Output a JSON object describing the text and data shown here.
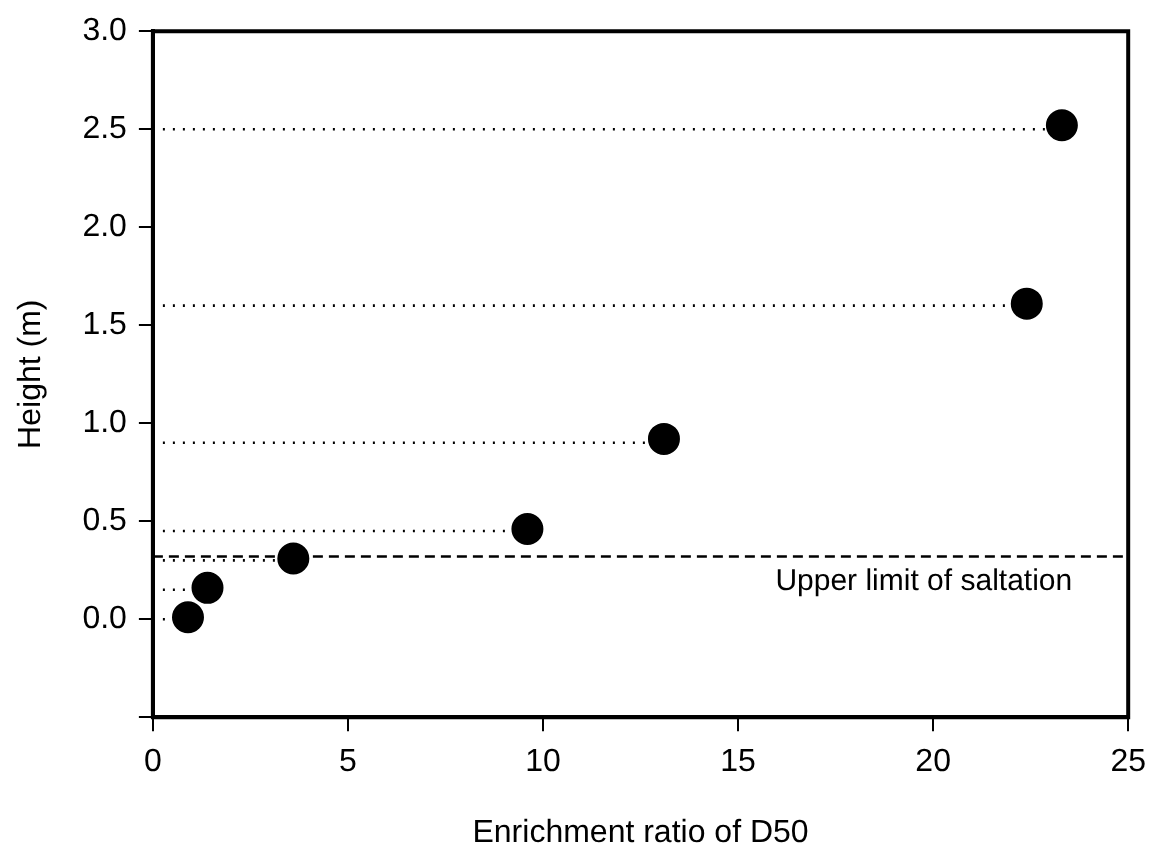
{
  "chart_data": {
    "type": "scatter",
    "xlabel": "Enrichment ratio of D50",
    "ylabel": "Height (m)",
    "xlim": [
      0,
      25
    ],
    "xticks": [
      0,
      5,
      10,
      15,
      20,
      25
    ],
    "ylim": [
      -0.5,
      3.0
    ],
    "yticks": [
      {
        "value": -0.5,
        "label": null
      },
      {
        "value": 0,
        "label": "0.0"
      },
      {
        "value": 0.5,
        "label": "0.5"
      },
      {
        "value": 1,
        "label": "1.0"
      },
      {
        "value": 1.5,
        "label": "1.5"
      },
      {
        "value": 2,
        "label": "2.0"
      },
      {
        "value": 2.5,
        "label": "2.5"
      },
      {
        "value": 3,
        "label": "3.0"
      }
    ],
    "grid": false,
    "legend": false,
    "series": [
      {
        "color": "#000000",
        "marker": "circle",
        "x": [
          0.9,
          1.4,
          3.6,
          9.6,
          13.1,
          22.4,
          23.3
        ],
        "values": [
          0.01,
          0.16,
          0.31,
          0.46,
          0.92,
          1.61,
          2.52
        ]
      },
      {
        "type": "line",
        "color": "#000000",
        "line_style": "dotted",
        "marker": "none",
        "x": [
          0,
          23.0
        ],
        "values": [
          2.5,
          2.5
        ]
      },
      {
        "type": "line",
        "color": "#000000",
        "line_style": "dotted",
        "marker": "none",
        "x": [
          0,
          22.1
        ],
        "values": [
          1.6,
          1.6
        ]
      },
      {
        "type": "line",
        "color": "#000000",
        "line_style": "dotted",
        "marker": "none",
        "x": [
          0,
          12.8
        ],
        "values": [
          0.9,
          0.9
        ]
      },
      {
        "type": "line",
        "color": "#000000",
        "line_style": "dotted",
        "marker": "none",
        "x": [
          0,
          9.3
        ],
        "values": [
          0.45,
          0.45
        ]
      },
      {
        "type": "line",
        "color": "#000000",
        "line_style": "dotted",
        "marker": "none",
        "x": [
          0,
          3.3
        ],
        "values": [
          0.3,
          0.3
        ]
      },
      {
        "type": "line",
        "color": "#000000",
        "line_style": "dotted",
        "marker": "none",
        "x": [
          0,
          1.0
        ],
        "values": [
          0.15,
          0.15
        ]
      },
      {
        "type": "line",
        "color": "#000000",
        "line_style": "dotted",
        "marker": "none",
        "x": [
          0,
          0.6
        ],
        "values": [
          0,
          0
        ]
      }
    ],
    "ref_lines": [
      {
        "axis": "y",
        "value": 0.32,
        "label": "Upper limit of saltation",
        "color": "#000000",
        "line_style": "dashed"
      }
    ]
  }
}
